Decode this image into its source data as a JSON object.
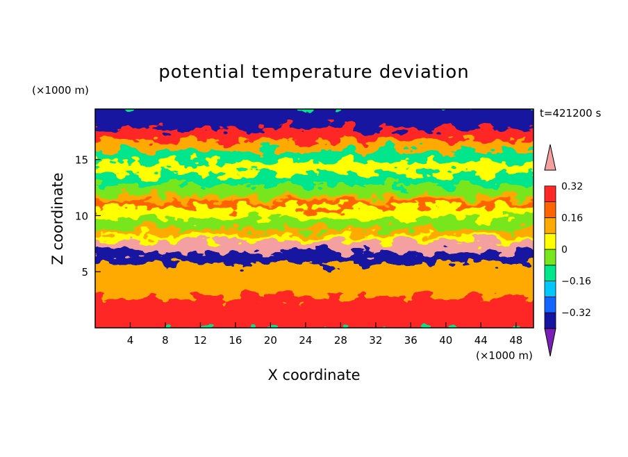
{
  "chart_data": {
    "type": "heatmap",
    "title": "potential temperature deviation",
    "xlabel": "X coordinate",
    "ylabel": "Z coordinate",
    "x_unit": "(×1000 m)",
    "y_unit": "(×1000 m)",
    "time_label": "t=421200 s",
    "xlim": [
      0,
      50
    ],
    "ylim": [
      0,
      19.5
    ],
    "x_ticks": [
      4,
      8,
      12,
      16,
      20,
      24,
      28,
      32,
      36,
      40,
      44,
      48
    ],
    "y_ticks": [
      5,
      10,
      15
    ],
    "grid": false,
    "legend_position": "right",
    "colorbar": {
      "levels": [
        -0.4,
        -0.32,
        -0.24,
        -0.16,
        -0.08,
        0,
        0.08,
        0.16,
        0.24,
        0.32,
        0.4
      ],
      "tick_labels": [
        "0.32",
        "0.16",
        "0",
        "−0.16",
        "−0.32"
      ],
      "tick_values": [
        0.32,
        0.16,
        0,
        -0.16,
        -0.32
      ],
      "colors": [
        "#7a1fb5",
        "#1414a0",
        "#1464ff",
        "#00c8ff",
        "#00e68c",
        "#78e61e",
        "#ffff00",
        "#ffaa00",
        "#ff6400",
        "#ff2828",
        "#f5a0a0"
      ]
    },
    "bands": [
      {
        "z": [
          0,
          3.0
        ],
        "value": 0.25
      },
      {
        "z": [
          3.0,
          6.0
        ],
        "value": 0.1
      },
      {
        "z": [
          6.0,
          7.0
        ],
        "value": -0.38
      },
      {
        "z": [
          7.0,
          8.0
        ],
        "value": 0.45
      },
      {
        "z": [
          8.0,
          8.5
        ],
        "value": 0.02
      },
      {
        "z": [
          8.5,
          9.0
        ],
        "value": 0.1
      },
      {
        "z": [
          9.0,
          10.0
        ],
        "value": -0.02
      },
      {
        "z": [
          10.0,
          11.0
        ],
        "value": 0.05
      },
      {
        "z": [
          11.0,
          11.5
        ],
        "value": 0.22
      },
      {
        "z": [
          11.5,
          12.0
        ],
        "value": 0.15
      },
      {
        "z": [
          12.0,
          13.0
        ],
        "value": -0.06
      },
      {
        "z": [
          13.0,
          14.0
        ],
        "value": -0.1
      },
      {
        "z": [
          14.0,
          15.0
        ],
        "value": 0.05
      },
      {
        "z": [
          15.0,
          16.0
        ],
        "value": -0.14
      },
      {
        "z": [
          16.0,
          17.0
        ],
        "value": 0.12
      },
      {
        "z": [
          17.0,
          18.0
        ],
        "value": 0.3
      },
      {
        "z": [
          18.0,
          19.5
        ],
        "value": -0.35
      }
    ]
  }
}
